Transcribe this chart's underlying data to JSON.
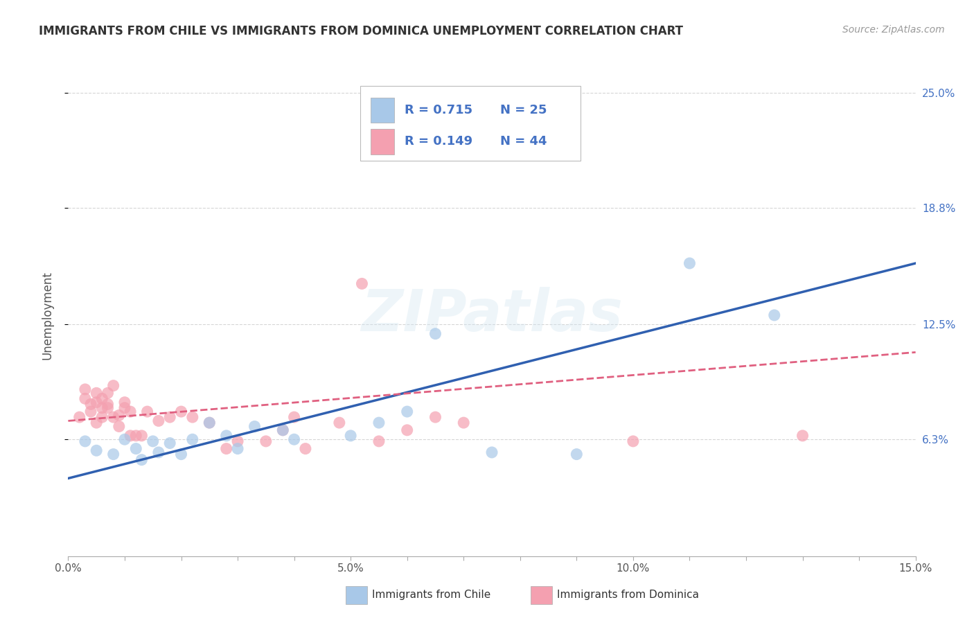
{
  "title": "IMMIGRANTS FROM CHILE VS IMMIGRANTS FROM DOMINICA UNEMPLOYMENT CORRELATION CHART",
  "source": "Source: ZipAtlas.com",
  "ylabel": "Unemployment",
  "xlim": [
    0.0,
    0.15
  ],
  "ylim": [
    0.0,
    0.26
  ],
  "xtick_positions": [
    0.0,
    0.01,
    0.02,
    0.03,
    0.04,
    0.05,
    0.06,
    0.07,
    0.08,
    0.09,
    0.1,
    0.11,
    0.12,
    0.13,
    0.14,
    0.15
  ],
  "xtick_labels": [
    "0.0%",
    "",
    "",
    "",
    "",
    "5.0%",
    "",
    "",
    "",
    "",
    "10.0%",
    "",
    "",
    "",
    "",
    "15.0%"
  ],
  "ytick_values": [
    0.063,
    0.125,
    0.188,
    0.25
  ],
  "ytick_labels": [
    "6.3%",
    "12.5%",
    "18.8%",
    "25.0%"
  ],
  "grid_color": "#cccccc",
  "background_color": "#ffffff",
  "chile_color": "#a8c8e8",
  "dominica_color": "#f4a0b0",
  "chile_line_color": "#3060b0",
  "dominica_line_color": "#e06080",
  "legend_R_chile": "R = 0.715",
  "legend_N_chile": "N = 25",
  "legend_R_dominica": "R = 0.149",
  "legend_N_dominica": "N = 44",
  "legend_color": "#4472c4",
  "chile_points": [
    [
      0.003,
      0.062
    ],
    [
      0.005,
      0.057
    ],
    [
      0.008,
      0.055
    ],
    [
      0.01,
      0.063
    ],
    [
      0.012,
      0.058
    ],
    [
      0.013,
      0.052
    ],
    [
      0.015,
      0.062
    ],
    [
      0.016,
      0.056
    ],
    [
      0.018,
      0.061
    ],
    [
      0.02,
      0.055
    ],
    [
      0.022,
      0.063
    ],
    [
      0.025,
      0.072
    ],
    [
      0.028,
      0.065
    ],
    [
      0.03,
      0.058
    ],
    [
      0.033,
      0.07
    ],
    [
      0.038,
      0.068
    ],
    [
      0.04,
      0.063
    ],
    [
      0.05,
      0.065
    ],
    [
      0.055,
      0.072
    ],
    [
      0.06,
      0.078
    ],
    [
      0.065,
      0.12
    ],
    [
      0.075,
      0.056
    ],
    [
      0.09,
      0.055
    ],
    [
      0.11,
      0.158
    ],
    [
      0.125,
      0.13
    ]
  ],
  "dominica_points": [
    [
      0.002,
      0.075
    ],
    [
      0.003,
      0.085
    ],
    [
      0.003,
      0.09
    ],
    [
      0.004,
      0.078
    ],
    [
      0.004,
      0.082
    ],
    [
      0.005,
      0.088
    ],
    [
      0.005,
      0.083
    ],
    [
      0.005,
      0.072
    ],
    [
      0.006,
      0.08
    ],
    [
      0.006,
      0.075
    ],
    [
      0.006,
      0.085
    ],
    [
      0.007,
      0.088
    ],
    [
      0.007,
      0.08
    ],
    [
      0.007,
      0.082
    ],
    [
      0.008,
      0.075
    ],
    [
      0.008,
      0.092
    ],
    [
      0.009,
      0.07
    ],
    [
      0.009,
      0.076
    ],
    [
      0.01,
      0.08
    ],
    [
      0.01,
      0.083
    ],
    [
      0.011,
      0.065
    ],
    [
      0.011,
      0.078
    ],
    [
      0.012,
      0.065
    ],
    [
      0.013,
      0.065
    ],
    [
      0.014,
      0.078
    ],
    [
      0.016,
      0.073
    ],
    [
      0.018,
      0.075
    ],
    [
      0.02,
      0.078
    ],
    [
      0.022,
      0.075
    ],
    [
      0.025,
      0.072
    ],
    [
      0.028,
      0.058
    ],
    [
      0.03,
      0.062
    ],
    [
      0.035,
      0.062
    ],
    [
      0.038,
      0.068
    ],
    [
      0.04,
      0.075
    ],
    [
      0.042,
      0.058
    ],
    [
      0.048,
      0.072
    ],
    [
      0.052,
      0.147
    ],
    [
      0.055,
      0.062
    ],
    [
      0.06,
      0.068
    ],
    [
      0.065,
      0.075
    ],
    [
      0.07,
      0.072
    ],
    [
      0.1,
      0.062
    ],
    [
      0.13,
      0.065
    ]
  ],
  "watermark": "ZIPatlas",
  "chile_trend_x": [
    0.0,
    0.15
  ],
  "chile_trend_y": [
    0.042,
    0.158
  ],
  "dominica_trend_x": [
    0.0,
    0.15
  ],
  "dominica_trend_y": [
    0.073,
    0.11
  ],
  "bottom_legend_chile": "Immigrants from Chile",
  "bottom_legend_dominica": "Immigrants from Dominica"
}
